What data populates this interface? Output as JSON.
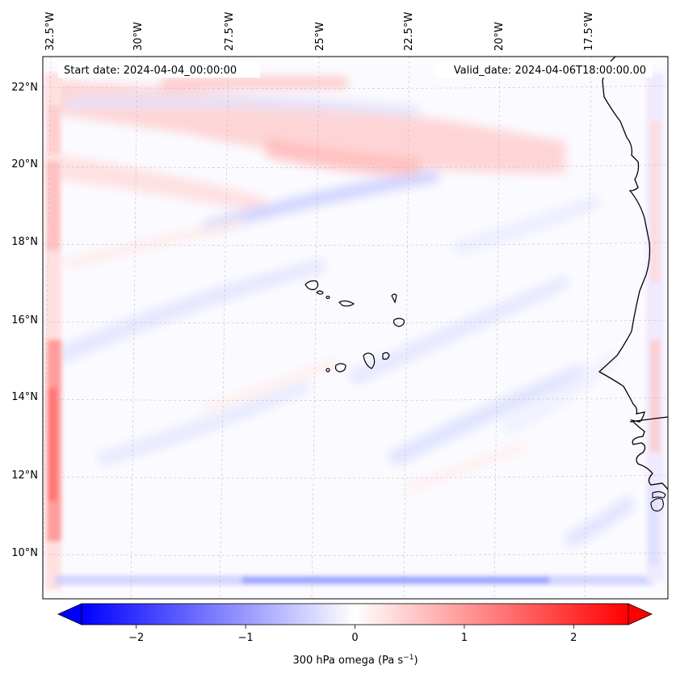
{
  "map": {
    "start_date_label": "Start date: 2024-04-04_00:00:00",
    "valid_date_label": "Valid_date: 2024-04-06T18:00:00.00",
    "lon_labels": [
      "32.5°W",
      "30°W",
      "27.5°W",
      "25°W",
      "22.5°W",
      "20°W",
      "17.5°W"
    ],
    "lat_labels": [
      "22°N",
      "20°N",
      "18°N",
      "16°N",
      "14°N",
      "12°N",
      "10°N"
    ],
    "field_variable": "300 hPa omega",
    "colors": {
      "neg": "#0000ff",
      "zero": "#ffffff",
      "pos": "#ff0000",
      "coast": "#000000",
      "grid": "#b0b0b0"
    }
  },
  "colorbar": {
    "tick_labels": [
      "−2",
      "−1",
      "0",
      "1",
      "2"
    ],
    "tick_values": [
      -2,
      -1,
      0,
      1,
      2
    ],
    "range": [
      -2.5,
      2.5
    ],
    "label_prefix": "300 hPa omega (Pa s",
    "label_exp": "−1",
    "label_suffix": ")"
  }
}
